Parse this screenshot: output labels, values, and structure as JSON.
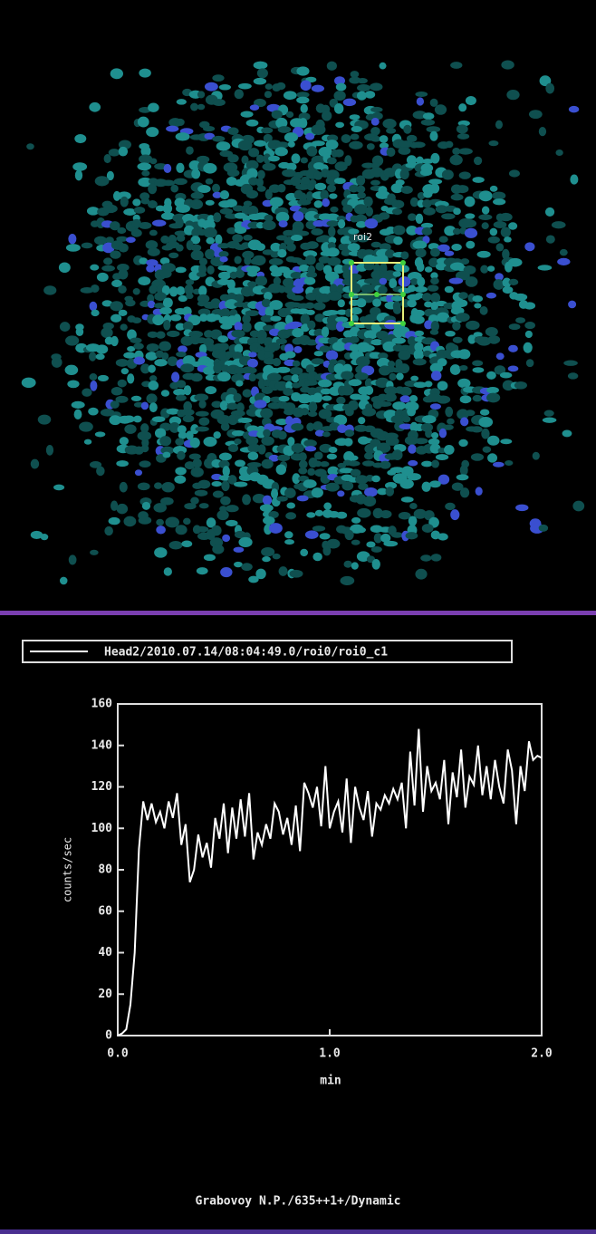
{
  "image": {
    "roi_label": "roi2"
  },
  "chart_data": {
    "type": "line",
    "x_label": "min",
    "y_label": "counts/sec",
    "x": [
      0,
      0.02,
      0.04,
      0.06,
      0.08,
      0.1,
      0.12,
      0.14,
      0.16,
      0.18,
      0.2,
      0.22,
      0.24,
      0.26,
      0.28,
      0.3,
      0.32,
      0.34,
      0.36,
      0.38,
      0.4,
      0.42,
      0.44,
      0.46,
      0.48,
      0.5,
      0.52,
      0.54,
      0.56,
      0.58,
      0.6,
      0.62,
      0.64,
      0.66,
      0.68,
      0.7,
      0.72,
      0.74,
      0.76,
      0.78,
      0.8,
      0.82,
      0.84,
      0.86,
      0.88,
      0.9,
      0.92,
      0.94,
      0.96,
      0.98,
      1.0,
      1.02,
      1.04,
      1.06,
      1.08,
      1.1,
      1.12,
      1.14,
      1.16,
      1.18,
      1.2,
      1.22,
      1.24,
      1.26,
      1.28,
      1.3,
      1.32,
      1.34,
      1.36,
      1.38,
      1.4,
      1.42,
      1.44,
      1.46,
      1.48,
      1.5,
      1.52,
      1.54,
      1.56,
      1.58,
      1.6,
      1.62,
      1.64,
      1.66,
      1.68,
      1.7,
      1.72,
      1.74,
      1.76,
      1.78,
      1.8,
      1.82,
      1.84,
      1.86,
      1.88,
      1.9,
      1.92,
      1.94,
      1.96,
      1.98,
      2.0
    ],
    "series": [
      {
        "name": "Head2/2010.07.14/08:04:49.0/roi0/roi0_c1",
        "color": "#ffffff",
        "values": [
          0,
          1,
          3,
          15,
          40,
          90,
          113,
          104,
          112,
          103,
          108,
          100,
          113,
          105,
          117,
          92,
          102,
          74,
          80,
          97,
          86,
          93,
          81,
          105,
          95,
          112,
          88,
          110,
          95,
          114,
          96,
          117,
          85,
          98,
          92,
          102,
          95,
          112,
          108,
          97,
          105,
          92,
          111,
          89,
          122,
          117,
          110,
          120,
          101,
          130,
          100,
          108,
          113,
          98,
          124,
          93,
          120,
          110,
          104,
          118,
          96,
          112,
          109,
          116,
          112,
          119,
          114,
          122,
          100,
          137,
          111,
          148,
          108,
          130,
          118,
          122,
          114,
          133,
          102,
          127,
          115,
          138,
          110,
          125,
          121,
          140,
          116,
          130,
          114,
          133,
          120,
          112,
          138,
          128,
          102,
          130,
          118,
          142,
          133,
          135,
          134
        ]
      }
    ],
    "xlim": [
      0,
      2
    ],
    "ylim": [
      0,
      160
    ],
    "xticks": [
      {
        "value": 0,
        "label": "0.0"
      },
      {
        "value": 1,
        "label": "1.0"
      },
      {
        "value": 2,
        "label": "2.0"
      }
    ],
    "yticks": [
      0,
      20,
      40,
      60,
      80,
      100,
      120,
      140,
      160
    ]
  },
  "footer": "Grabovoy N.P./635++1+/Dynamic"
}
